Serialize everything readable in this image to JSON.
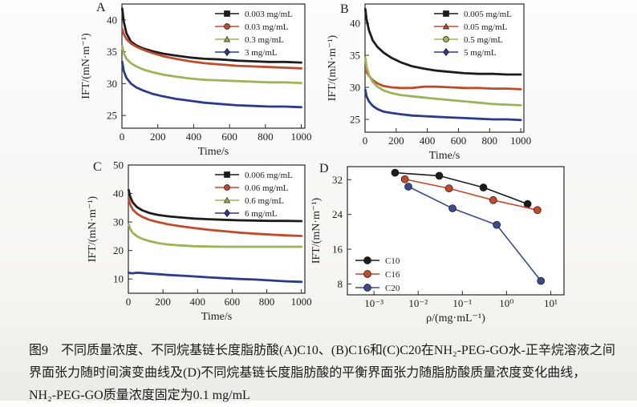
{
  "caption": {
    "lines": [
      "图9　不同质量浓度、不同烷基链长度脂肪酸(A)C10、(B)C16和(C)C20在NH₂-PEG-GO水-正辛烷溶液之间",
      "界面张力随时间演变曲线及(D)不同烷基链长度脂肪酸的平衡界面张力随脂肪酸质量浓度变化曲线，",
      "NH₂-PEG-GO质量浓度固定为0.1 mg/mL"
    ]
  },
  "chart_data": [
    {
      "id": "A",
      "panel_label": "A",
      "type": "line",
      "xlabel": "Time/s",
      "ylabel": "IFT/(mN·m⁻¹)",
      "xscale": "linear",
      "xlim": [
        0,
        1020
      ],
      "ylim": [
        23,
        42.5
      ],
      "xticks": [
        0,
        200,
        400,
        600,
        800,
        1000
      ],
      "xtick_labels": [
        "0",
        "200",
        "400",
        "600",
        "800",
        "1000"
      ],
      "yticks": [
        25,
        30,
        35,
        40
      ],
      "ytick_labels": [
        "25",
        "30",
        "35",
        "40"
      ],
      "grid": false,
      "legend_pos": "top-right",
      "show_markers": false,
      "x_shared": [
        2,
        10,
        25,
        50,
        80,
        120,
        170,
        230,
        300,
        380,
        460,
        550,
        640,
        730,
        820,
        910,
        1000
      ],
      "series": [
        {
          "name": "0.003 mg/mL",
          "color": "#1c1c1c",
          "marker": "square",
          "y": [
            41.8,
            39.8,
            37.9,
            36.6,
            36.0,
            35.5,
            35.1,
            34.7,
            34.4,
            34.1,
            33.9,
            33.8,
            33.6,
            33.5,
            33.4,
            33.4,
            33.3
          ]
        },
        {
          "name": "0.03 mg/mL",
          "color": "#bf4b2a",
          "marker": "circle",
          "y": [
            38.6,
            37.8,
            37.0,
            36.3,
            35.8,
            35.3,
            34.8,
            34.3,
            33.9,
            33.5,
            33.2,
            33.0,
            32.8,
            32.7,
            32.6,
            32.5,
            32.4
          ]
        },
        {
          "name": "0.3 mg/mL",
          "color": "#9cb457",
          "marker": "triangle",
          "y": [
            35.9,
            34.8,
            33.9,
            33.2,
            32.7,
            32.2,
            31.8,
            31.4,
            31.1,
            30.8,
            30.6,
            30.5,
            30.4,
            30.3,
            30.2,
            30.2,
            30.1
          ]
        },
        {
          "name": "3 mg/mL",
          "color": "#2c3a8c",
          "marker": "diamond",
          "y": [
            33.4,
            32.0,
            30.9,
            30.0,
            29.4,
            28.9,
            28.4,
            28.0,
            27.6,
            27.3,
            27.0,
            26.8,
            26.6,
            26.5,
            26.4,
            26.4,
            26.3
          ]
        }
      ]
    },
    {
      "id": "B",
      "panel_label": "B",
      "type": "line",
      "xlabel": "Time/s",
      "ylabel": "IFT/(mN·m⁻¹)",
      "xscale": "linear",
      "xlim": [
        0,
        1020
      ],
      "ylim": [
        23,
        43
      ],
      "xticks": [
        0,
        200,
        400,
        600,
        800,
        1000
      ],
      "xtick_labels": [
        "0",
        "200",
        "400",
        "600",
        "800",
        "1000"
      ],
      "yticks": [
        25,
        30,
        35,
        40
      ],
      "ytick_labels": [
        "25",
        "30",
        "35",
        "40"
      ],
      "grid": false,
      "legend_pos": "top-right",
      "show_markers": false,
      "x_shared": [
        2,
        10,
        25,
        50,
        80,
        120,
        170,
        230,
        300,
        380,
        460,
        550,
        640,
        730,
        820,
        910,
        1000
      ],
      "series": [
        {
          "name": "0.005 mg/mL",
          "color": "#1c1c1c",
          "marker": "square",
          "y": [
            42.2,
            40.6,
            38.9,
            37.3,
            36.3,
            35.4,
            34.6,
            33.9,
            33.3,
            32.9,
            32.6,
            32.4,
            32.2,
            32.1,
            32.1,
            32.0,
            32.0
          ]
        },
        {
          "name": "0.05 mg/mL",
          "color": "#bf4b2a",
          "marker": "triangle",
          "y": [
            33.0,
            32.4,
            31.8,
            31.1,
            30.6,
            30.2,
            30.0,
            29.9,
            29.9,
            30.1,
            30.1,
            30.0,
            29.9,
            29.9,
            29.8,
            29.8,
            29.7
          ]
        },
        {
          "name": "0.5 mg/mL",
          "color": "#9cb457",
          "marker": "circle",
          "y": [
            34.6,
            33.2,
            31.9,
            30.8,
            30.1,
            29.5,
            29.1,
            28.8,
            28.6,
            28.4,
            28.2,
            28.0,
            27.8,
            27.6,
            27.4,
            27.3,
            27.2
          ]
        },
        {
          "name": "5 mg/mL",
          "color": "#2c3a8c",
          "marker": "diamond",
          "y": [
            29.6,
            28.6,
            27.8,
            27.1,
            26.6,
            26.2,
            26.0,
            25.8,
            25.6,
            25.5,
            25.4,
            25.3,
            25.2,
            25.1,
            25.0,
            25.0,
            24.9
          ]
        }
      ]
    },
    {
      "id": "C",
      "panel_label": "C",
      "type": "line",
      "xlabel": "Time/s",
      "ylabel": "IFT/(mN·m⁻¹)",
      "xscale": "linear",
      "xlim": [
        0,
        1020
      ],
      "ylim": [
        5,
        50
      ],
      "xticks": [
        0,
        200,
        400,
        600,
        800,
        1000
      ],
      "xtick_labels": [
        "0",
        "200",
        "400",
        "600",
        "800",
        "1000"
      ],
      "yticks": [
        10,
        20,
        30,
        40,
        50
      ],
      "ytick_labels": [
        "10",
        "20",
        "30",
        "40",
        "50"
      ],
      "grid": false,
      "legend_pos": "top-right",
      "show_markers": false,
      "x_shared": [
        2,
        10,
        25,
        50,
        80,
        120,
        170,
        230,
        300,
        380,
        460,
        550,
        640,
        730,
        820,
        910,
        1000
      ],
      "series": [
        {
          "name": "0.006 mg/mL",
          "color": "#1c1c1c",
          "marker": "square",
          "y": [
            41.2,
            39.0,
            36.9,
            35.2,
            34.1,
            33.2,
            32.5,
            32.0,
            31.6,
            31.2,
            31.0,
            30.8,
            30.6,
            30.5,
            30.4,
            30.4,
            30.3
          ]
        },
        {
          "name": "0.06 mg/mL",
          "color": "#bf4b2a",
          "marker": "circle",
          "y": [
            38.2,
            36.2,
            34.4,
            32.9,
            31.8,
            30.8,
            30.0,
            29.2,
            28.5,
            27.9,
            27.3,
            26.8,
            26.3,
            25.9,
            25.6,
            25.3,
            25.1
          ]
        },
        {
          "name": "0.6 mg/mL",
          "color": "#9cb457",
          "marker": "triangle",
          "y": [
            29.2,
            27.6,
            26.2,
            25.0,
            24.1,
            23.3,
            22.6,
            22.1,
            21.8,
            21.5,
            21.4,
            21.3,
            21.3,
            21.3,
            21.3,
            21.3,
            21.3
          ]
        },
        {
          "name": "6 mg/mL",
          "color": "#2c3a8c",
          "marker": "diamond",
          "y": [
            12.2,
            12.1,
            12.0,
            12.2,
            12.1,
            11.9,
            11.7,
            11.4,
            11.2,
            10.9,
            10.6,
            10.3,
            10.0,
            9.8,
            9.5,
            9.2,
            9.0
          ]
        }
      ]
    },
    {
      "id": "D",
      "panel_label": "D",
      "type": "scatter",
      "xlabel": "ρ/(mg·mL⁻¹)",
      "ylabel": "IFT/(mN·m⁻¹)",
      "xscale": "log",
      "xlim": [
        0.00025,
        20
      ],
      "ylim": [
        5.5,
        35
      ],
      "xticks": [
        0.001,
        0.01,
        0.1,
        1,
        10
      ],
      "xtick_labels": [
        "10⁻³",
        "10⁻²",
        "10⁻¹",
        "10⁰",
        "10¹"
      ],
      "yticks": [
        8,
        16,
        24,
        32
      ],
      "ytick_labels": [
        "8",
        "16",
        "24",
        "32"
      ],
      "grid": false,
      "legend_pos": "bottom-left",
      "show_markers": true,
      "series": [
        {
          "name": "C10",
          "color": "#1c1c1c",
          "marker": "circle",
          "x": [
            0.003,
            0.03,
            0.3,
            3
          ],
          "y": [
            33.6,
            32.9,
            30.2,
            26.4
          ]
        },
        {
          "name": "C16",
          "color": "#c4482a",
          "marker": "circle",
          "x": [
            0.005,
            0.05,
            0.5,
            5
          ],
          "y": [
            32.1,
            30.0,
            27.3,
            25.0
          ]
        },
        {
          "name": "C20",
          "color": "#3b4a8e",
          "marker": "circle",
          "x": [
            0.006,
            0.06,
            0.6,
            6
          ],
          "y": [
            30.4,
            25.4,
            21.6,
            8.7
          ]
        }
      ]
    }
  ]
}
